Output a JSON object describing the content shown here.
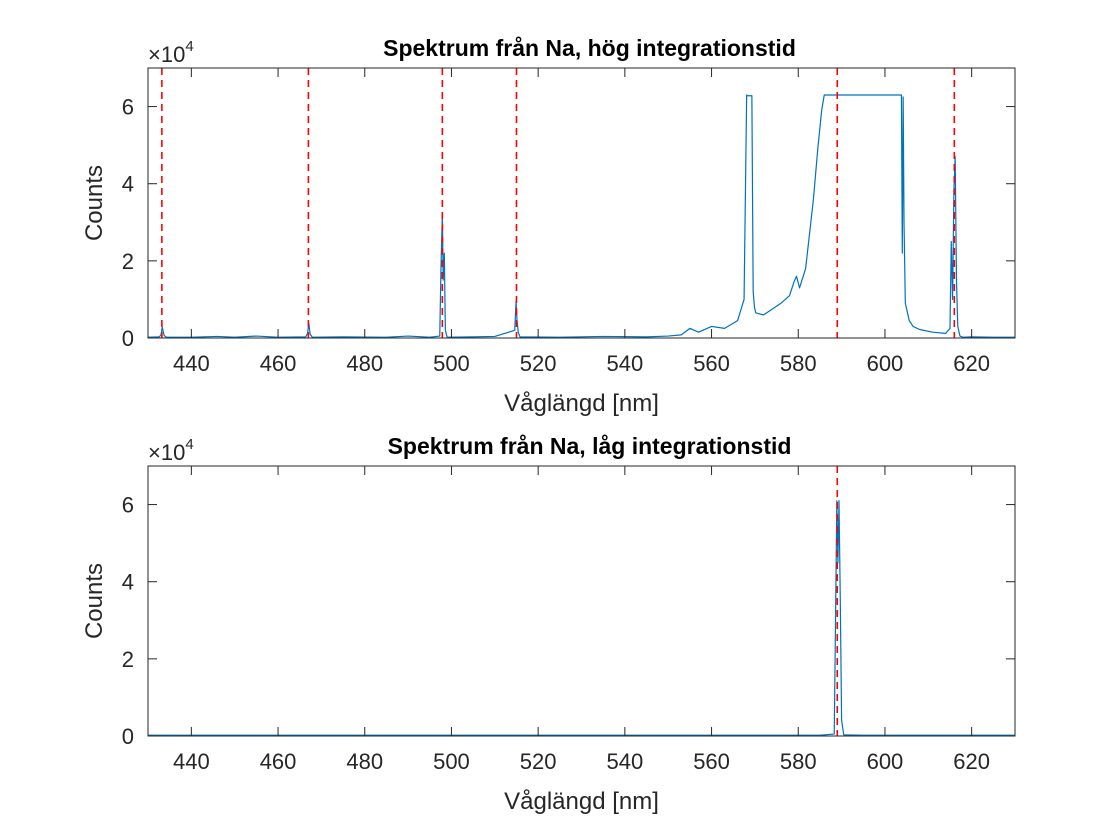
{
  "chart_data": [
    {
      "type": "line",
      "title": "Spektrum från Na, hög integrationstid",
      "xlabel": "Våglängd [nm]",
      "ylabel": "Counts",
      "exponent_label": "×10",
      "exponent_power": "4",
      "xlim": [
        430,
        630
      ],
      "ylim": [
        0,
        7
      ],
      "x_ticks": [
        440,
        460,
        480,
        500,
        520,
        540,
        560,
        580,
        600,
        620
      ],
      "y_ticks": [
        0,
        2,
        4,
        6
      ],
      "grid": false,
      "series": [
        {
          "style": "solid",
          "color": "#0072BD",
          "x": [
            430,
            432.6,
            433.0,
            433.3,
            433.7,
            434.2,
            440,
            446,
            450,
            455,
            460,
            466.4,
            466.8,
            467.1,
            467.4,
            467.9,
            475,
            485,
            490,
            495,
            497.3,
            497.6,
            497.9,
            498.1,
            498.35,
            498.6,
            499,
            505,
            510,
            514.6,
            514.9,
            515.1,
            515.4,
            515.8,
            525,
            535,
            545,
            550,
            553,
            555,
            557,
            560,
            563,
            566,
            567.5,
            568.1,
            568.3,
            568.6,
            569.3,
            569.6,
            569.9,
            570.2,
            572,
            574,
            576,
            578,
            579,
            579.6,
            580.3,
            581,
            581.7,
            582.5,
            583.5,
            584.5,
            585.4,
            586.0,
            586.5,
            590,
            595,
            600,
            603.2,
            603.8,
            604.0,
            604.2,
            604.4,
            604.7,
            605.6,
            606.5,
            608,
            611,
            614,
            615.0,
            615.3,
            615.6,
            615.9,
            616.2,
            616.5,
            616.8,
            617.3,
            618,
            620,
            625,
            630
          ],
          "y": [
            0.02,
            0.03,
            0.08,
            0.28,
            0.07,
            0.02,
            0.02,
            0.04,
            0.02,
            0.05,
            0.02,
            0.03,
            0.12,
            0.38,
            0.1,
            0.02,
            0.03,
            0.02,
            0.05,
            0.02,
            0.05,
            1.9,
            3.2,
            1.5,
            2.2,
            0.2,
            0.02,
            0.03,
            0.04,
            0.2,
            0.95,
            0.5,
            0.15,
            0.03,
            0.02,
            0.04,
            0.03,
            0.05,
            0.08,
            0.25,
            0.15,
            0.3,
            0.25,
            0.45,
            1.0,
            6.3,
            6.28,
            6.28,
            6.28,
            1.2,
            0.8,
            0.65,
            0.6,
            0.75,
            0.9,
            1.1,
            1.45,
            1.6,
            1.3,
            1.55,
            1.8,
            2.6,
            3.6,
            4.9,
            5.9,
            6.3,
            6.3,
            6.3,
            6.3,
            6.3,
            6.3,
            6.3,
            2.2,
            6.25,
            3.0,
            0.9,
            0.45,
            0.3,
            0.22,
            0.15,
            0.12,
            0.25,
            2.5,
            1.0,
            3.8,
            4.7,
            1.5,
            0.3,
            0.05,
            0.02,
            0.03,
            0.02,
            0.02
          ]
        },
        {
          "style": "dashed",
          "color": "#FF0000",
          "x_lines": [
            433.2,
            467.0,
            497.9,
            515.0,
            589.0,
            616.0
          ]
        }
      ]
    },
    {
      "type": "line",
      "title": "Spektrum från Na, låg integrationstid",
      "xlabel": "Våglängd [nm]",
      "ylabel": "Counts",
      "exponent_label": "×10",
      "exponent_power": "4",
      "xlim": [
        430,
        630
      ],
      "ylim": [
        0,
        7
      ],
      "x_ticks": [
        440,
        460,
        480,
        500,
        520,
        540,
        560,
        580,
        600,
        620
      ],
      "y_ticks": [
        0,
        2,
        4,
        6
      ],
      "grid": false,
      "series": [
        {
          "style": "solid",
          "color": "#0072BD",
          "x": [
            430,
            450,
            470,
            490,
            510,
            530,
            550,
            570,
            585,
            588.3,
            588.6,
            588.9,
            589.15,
            589.4,
            589.7,
            590.0,
            590.5,
            595,
            610,
            630
          ],
          "y": [
            0.02,
            0.02,
            0.02,
            0.02,
            0.02,
            0.02,
            0.02,
            0.02,
            0.02,
            0.05,
            3.0,
            6.1,
            4.5,
            6.1,
            3.5,
            0.4,
            0.03,
            0.02,
            0.02,
            0.02
          ]
        },
        {
          "style": "dashed",
          "color": "#FF0000",
          "x_lines": [
            589.0
          ]
        }
      ]
    }
  ]
}
